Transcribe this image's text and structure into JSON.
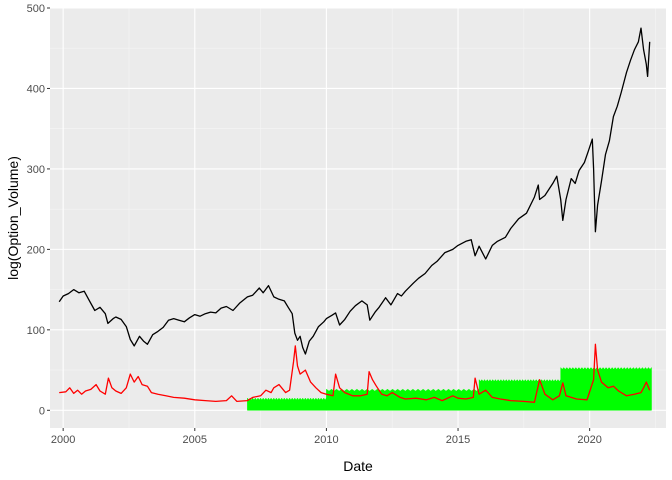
{
  "chart_data": {
    "type": "line",
    "title": "",
    "xlabel": "Date",
    "ylabel": "log(Option_Volume)",
    "xlim": [
      1999.5,
      2022.9
    ],
    "ylim": [
      -22,
      500
    ],
    "x_ticks": [
      2000,
      2005,
      2010,
      2015,
      2020
    ],
    "x_tick_labels": [
      "2000",
      "2005",
      "2010",
      "2015",
      "2020"
    ],
    "y_ticks": [
      0,
      100,
      200,
      300,
      400,
      500
    ],
    "y_tick_labels": [
      "0",
      "100",
      "200",
      "300",
      "400",
      "500"
    ],
    "grid": true,
    "legend": "none",
    "colors": {
      "panel": "#ebebeb",
      "grid_major": "#ffffff",
      "grid_minor": "#f5f5f5",
      "price": "#000000",
      "volatility": "#ff0000",
      "volume": "#00ff00"
    },
    "series": [
      {
        "color": "#000000",
        "points": [
          [
            1999.85,
            135
          ],
          [
            2000.0,
            142
          ],
          [
            2000.2,
            145
          ],
          [
            2000.4,
            150
          ],
          [
            2000.6,
            146
          ],
          [
            2000.8,
            148
          ],
          [
            2001.0,
            136
          ],
          [
            2001.2,
            124
          ],
          [
            2001.4,
            128
          ],
          [
            2001.6,
            120
          ],
          [
            2001.7,
            108
          ],
          [
            2001.9,
            114
          ],
          [
            2002.0,
            116
          ],
          [
            2002.2,
            113
          ],
          [
            2002.4,
            104
          ],
          [
            2002.55,
            88
          ],
          [
            2002.7,
            80
          ],
          [
            2002.8,
            86
          ],
          [
            2002.9,
            92
          ],
          [
            2003.05,
            86
          ],
          [
            2003.2,
            82
          ],
          [
            2003.4,
            94
          ],
          [
            2003.6,
            98
          ],
          [
            2003.8,
            103
          ],
          [
            2004.0,
            112
          ],
          [
            2004.2,
            114
          ],
          [
            2004.4,
            112
          ],
          [
            2004.6,
            110
          ],
          [
            2004.8,
            115
          ],
          [
            2005.0,
            119
          ],
          [
            2005.2,
            117
          ],
          [
            2005.4,
            120
          ],
          [
            2005.6,
            122
          ],
          [
            2005.8,
            121
          ],
          [
            2006.0,
            127
          ],
          [
            2006.2,
            129
          ],
          [
            2006.45,
            124
          ],
          [
            2006.7,
            133
          ],
          [
            2007.0,
            141
          ],
          [
            2007.2,
            143
          ],
          [
            2007.45,
            152
          ],
          [
            2007.6,
            146
          ],
          [
            2007.8,
            155
          ],
          [
            2008.0,
            141
          ],
          [
            2008.2,
            138
          ],
          [
            2008.4,
            136
          ],
          [
            2008.55,
            128
          ],
          [
            2008.7,
            120
          ],
          [
            2008.8,
            96
          ],
          [
            2008.9,
            87
          ],
          [
            2009.0,
            92
          ],
          [
            2009.1,
            78
          ],
          [
            2009.2,
            70
          ],
          [
            2009.35,
            86
          ],
          [
            2009.5,
            92
          ],
          [
            2009.7,
            104
          ],
          [
            2009.9,
            110
          ],
          [
            2010.0,
            114
          ],
          [
            2010.2,
            118
          ],
          [
            2010.35,
            121
          ],
          [
            2010.5,
            106
          ],
          [
            2010.7,
            113
          ],
          [
            2010.9,
            123
          ],
          [
            2011.1,
            130
          ],
          [
            2011.35,
            136
          ],
          [
            2011.55,
            131
          ],
          [
            2011.65,
            112
          ],
          [
            2011.85,
            122
          ],
          [
            2012.0,
            128
          ],
          [
            2012.25,
            140
          ],
          [
            2012.45,
            131
          ],
          [
            2012.7,
            145
          ],
          [
            2012.85,
            142
          ],
          [
            2013.0,
            148
          ],
          [
            2013.3,
            158
          ],
          [
            2013.5,
            164
          ],
          [
            2013.75,
            170
          ],
          [
            2014.0,
            180
          ],
          [
            2014.2,
            185
          ],
          [
            2014.5,
            196
          ],
          [
            2014.8,
            200
          ],
          [
            2015.0,
            205
          ],
          [
            2015.3,
            210
          ],
          [
            2015.5,
            212
          ],
          [
            2015.65,
            192
          ],
          [
            2015.8,
            204
          ],
          [
            2016.05,
            188
          ],
          [
            2016.3,
            205
          ],
          [
            2016.5,
            210
          ],
          [
            2016.8,
            215
          ],
          [
            2017.0,
            226
          ],
          [
            2017.3,
            238
          ],
          [
            2017.6,
            245
          ],
          [
            2017.9,
            265
          ],
          [
            2018.05,
            280
          ],
          [
            2018.1,
            262
          ],
          [
            2018.3,
            267
          ],
          [
            2018.6,
            282
          ],
          [
            2018.75,
            291
          ],
          [
            2018.9,
            262
          ],
          [
            2018.98,
            236
          ],
          [
            2019.1,
            262
          ],
          [
            2019.3,
            288
          ],
          [
            2019.45,
            282
          ],
          [
            2019.6,
            298
          ],
          [
            2019.8,
            308
          ],
          [
            2019.95,
            322
          ],
          [
            2020.1,
            337
          ],
          [
            2020.15,
            300
          ],
          [
            2020.22,
            222
          ],
          [
            2020.3,
            255
          ],
          [
            2020.45,
            285
          ],
          [
            2020.6,
            318
          ],
          [
            2020.75,
            335
          ],
          [
            2020.9,
            365
          ],
          [
            2021.05,
            378
          ],
          [
            2021.2,
            395
          ],
          [
            2021.4,
            420
          ],
          [
            2021.55,
            435
          ],
          [
            2021.7,
            448
          ],
          [
            2021.85,
            458
          ],
          [
            2021.95,
            475
          ],
          [
            2022.05,
            448
          ],
          [
            2022.15,
            430
          ],
          [
            2022.2,
            415
          ],
          [
            2022.28,
            458
          ]
        ]
      },
      {
        "color": "#ff0000",
        "points": [
          [
            1999.85,
            22
          ],
          [
            2000.1,
            23
          ],
          [
            2000.25,
            28
          ],
          [
            2000.4,
            21
          ],
          [
            2000.55,
            25
          ],
          [
            2000.7,
            20
          ],
          [
            2000.85,
            24
          ],
          [
            2001.05,
            26
          ],
          [
            2001.25,
            32
          ],
          [
            2001.4,
            24
          ],
          [
            2001.6,
            20
          ],
          [
            2001.72,
            40
          ],
          [
            2001.85,
            28
          ],
          [
            2002.0,
            24
          ],
          [
            2002.2,
            21
          ],
          [
            2002.4,
            28
          ],
          [
            2002.55,
            45
          ],
          [
            2002.7,
            35
          ],
          [
            2002.85,
            42
          ],
          [
            2003.0,
            32
          ],
          [
            2003.2,
            30
          ],
          [
            2003.35,
            22
          ],
          [
            2003.6,
            20
          ],
          [
            2003.9,
            18
          ],
          [
            2004.2,
            16
          ],
          [
            2004.6,
            15
          ],
          [
            2005.0,
            13
          ],
          [
            2005.4,
            12
          ],
          [
            2005.8,
            11
          ],
          [
            2006.2,
            12
          ],
          [
            2006.4,
            18
          ],
          [
            2006.6,
            11
          ],
          [
            2007.0,
            12
          ],
          [
            2007.2,
            16
          ],
          [
            2007.5,
            18
          ],
          [
            2007.7,
            25
          ],
          [
            2007.9,
            22
          ],
          [
            2008.0,
            28
          ],
          [
            2008.2,
            32
          ],
          [
            2008.45,
            22
          ],
          [
            2008.6,
            25
          ],
          [
            2008.75,
            60
          ],
          [
            2008.82,
            80
          ],
          [
            2008.9,
            55
          ],
          [
            2009.0,
            45
          ],
          [
            2009.2,
            50
          ],
          [
            2009.4,
            35
          ],
          [
            2009.6,
            28
          ],
          [
            2009.8,
            22
          ],
          [
            2010.0,
            20
          ],
          [
            2010.25,
            18
          ],
          [
            2010.35,
            45
          ],
          [
            2010.5,
            28
          ],
          [
            2010.7,
            22
          ],
          [
            2011.0,
            18
          ],
          [
            2011.3,
            18
          ],
          [
            2011.55,
            20
          ],
          [
            2011.62,
            48
          ],
          [
            2011.75,
            38
          ],
          [
            2011.9,
            30
          ],
          [
            2012.1,
            20
          ],
          [
            2012.3,
            18
          ],
          [
            2012.5,
            22
          ],
          [
            2012.8,
            16
          ],
          [
            2013.0,
            14
          ],
          [
            2013.4,
            15
          ],
          [
            2013.8,
            13
          ],
          [
            2014.1,
            16
          ],
          [
            2014.4,
            12
          ],
          [
            2014.8,
            18
          ],
          [
            2015.0,
            15
          ],
          [
            2015.3,
            14
          ],
          [
            2015.58,
            16
          ],
          [
            2015.65,
            40
          ],
          [
            2015.8,
            20
          ],
          [
            2016.05,
            25
          ],
          [
            2016.3,
            16
          ],
          [
            2016.6,
            14
          ],
          [
            2017.0,
            12
          ],
          [
            2017.5,
            11
          ],
          [
            2017.9,
            10
          ],
          [
            2018.1,
            38
          ],
          [
            2018.3,
            20
          ],
          [
            2018.6,
            13
          ],
          [
            2018.85,
            18
          ],
          [
            2018.98,
            34
          ],
          [
            2019.1,
            18
          ],
          [
            2019.5,
            14
          ],
          [
            2019.9,
            13
          ],
          [
            2020.15,
            38
          ],
          [
            2020.22,
            82
          ],
          [
            2020.3,
            50
          ],
          [
            2020.45,
            35
          ],
          [
            2020.7,
            28
          ],
          [
            2020.9,
            30
          ],
          [
            2021.1,
            24
          ],
          [
            2021.4,
            18
          ],
          [
            2021.7,
            20
          ],
          [
            2021.95,
            22
          ],
          [
            2022.05,
            28
          ],
          [
            2022.15,
            35
          ],
          [
            2022.28,
            25
          ]
        ]
      }
    ],
    "volume_band": {
      "color": "#00ff00",
      "segments": [
        {
          "x0": 2007.0,
          "x1": 2010.0,
          "low": 0,
          "high": 14
        },
        {
          "x0": 2010.0,
          "x1": 2015.8,
          "low": 0,
          "high": 25
        },
        {
          "x0": 2015.8,
          "x1": 2018.9,
          "low": 0,
          "high": 37
        },
        {
          "x0": 2018.9,
          "x1": 2022.35,
          "low": 0,
          "high": 52
        }
      ]
    }
  }
}
